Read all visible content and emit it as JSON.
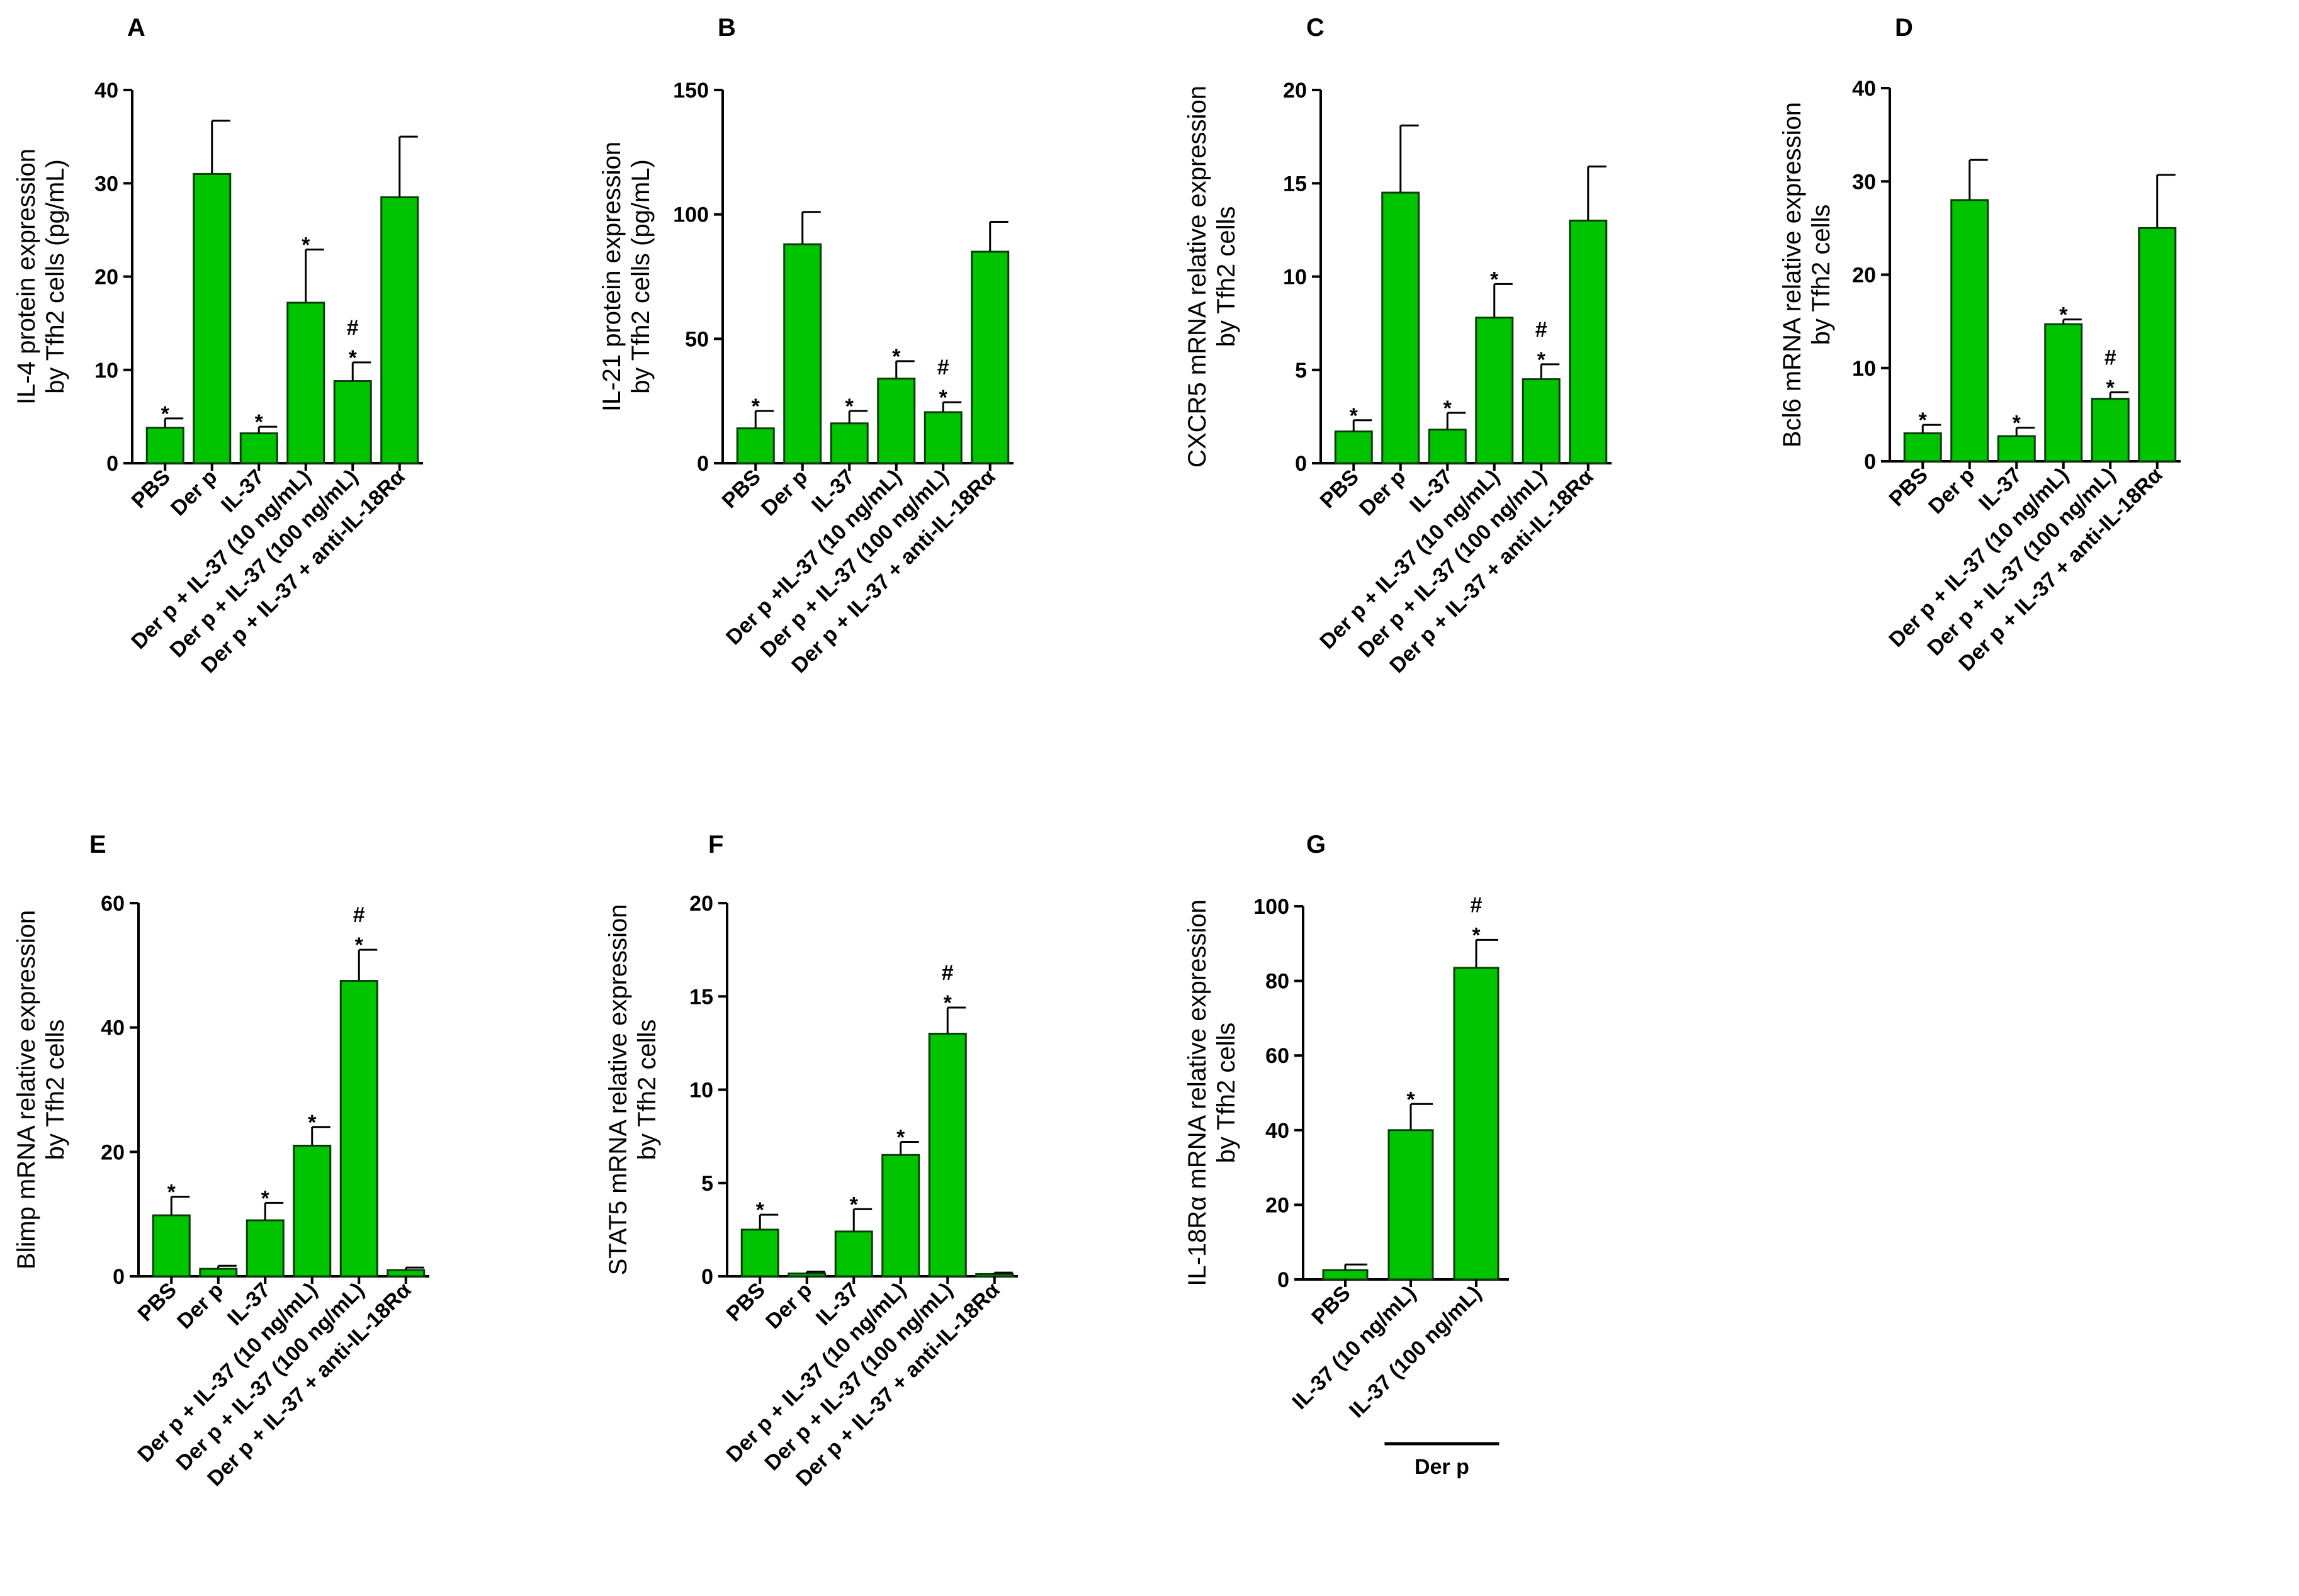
{
  "colors": {
    "bar": "#00c400",
    "bar_stroke": "#0b3d0b",
    "axis": "#000000"
  },
  "chart_data": [
    {
      "type": "bar",
      "panel": "A",
      "ylabel": [
        "IL-4 protein expression",
        "by Tfh2 cells (pg/mL)"
      ],
      "ylim": [
        0,
        40
      ],
      "yticks": [
        0,
        10,
        20,
        30,
        40
      ],
      "categories": [
        "PBS",
        "Der p",
        "IL-37",
        "Der p + IL-37 (10 ng/mL)",
        "Der p + IL-37 (100 ng/mL)",
        "Der p + IL-37 + anti-IL-18Rα"
      ],
      "values": [
        3.8,
        31,
        3.2,
        17.2,
        8.8,
        28.5
      ],
      "errors": [
        1.0,
        5.7,
        0.7,
        5.7,
        2.0,
        6.5
      ],
      "stars": [
        "*",
        "",
        "*",
        "*",
        "*",
        ""
      ],
      "hashes": [
        "",
        "",
        "",
        "",
        "#",
        ""
      ]
    },
    {
      "type": "bar",
      "panel": "B",
      "ylabel": [
        "IL-21 protein expression",
        "by Tfh2 cells (pg/mL)"
      ],
      "ylim": [
        0,
        150
      ],
      "yticks": [
        0,
        50,
        100,
        150
      ],
      "categories": [
        "PBS",
        "Der p",
        "IL-37",
        "Der p +IL-37 (10 ng/mL)",
        "Der p + IL-37 (100 ng/mL)",
        "Der p + IL-37 + anti-IL-18Rα"
      ],
      "values": [
        14,
        88,
        16,
        34,
        20.5,
        85
      ],
      "errors": [
        7,
        13,
        5,
        7,
        4,
        12
      ],
      "stars": [
        "*",
        "",
        "*",
        "*",
        "*",
        ""
      ],
      "hashes": [
        "",
        "",
        "",
        "",
        "#",
        ""
      ]
    },
    {
      "type": "bar",
      "panel": "C",
      "ylabel": [
        "CXCR5 mRNA relative expression",
        "by Tfh2 cells"
      ],
      "ylim": [
        0,
        20
      ],
      "yticks": [
        0,
        5,
        10,
        15,
        20
      ],
      "categories": [
        "PBS",
        "Der p",
        "IL-37",
        "Der p + IL-37 (10 ng/mL)",
        "Der p + IL-37 (100 ng/mL)",
        "Der p + IL-37 + anti-IL-18Rα"
      ],
      "values": [
        1.7,
        14.5,
        1.8,
        7.8,
        4.5,
        13
      ],
      "errors": [
        0.6,
        3.6,
        0.9,
        1.8,
        0.8,
        2.9
      ],
      "stars": [
        "*",
        "",
        "*",
        "*",
        "*",
        ""
      ],
      "hashes": [
        "",
        "",
        "",
        "",
        "#",
        ""
      ]
    },
    {
      "type": "bar",
      "panel": "D",
      "ylabel": [
        "Bcl6 mRNA relative expression",
        "by Tfh2 cells"
      ],
      "ylim": [
        0,
        40
      ],
      "yticks": [
        0,
        10,
        20,
        30,
        40
      ],
      "categories": [
        "PBS",
        "Der p",
        "IL-37",
        "Der p + IL-37 (10 ng/mL)",
        "Der p + IL-37 (100 ng/mL)",
        "Der p + IL-37 + anti-IL-18Rα"
      ],
      "values": [
        3,
        28,
        2.7,
        14.7,
        6.7,
        25
      ],
      "errors": [
        0.9,
        4.3,
        0.9,
        0.5,
        0.7,
        5.7
      ],
      "stars": [
        "*",
        "",
        "*",
        "*",
        "*",
        ""
      ],
      "hashes": [
        "",
        "",
        "",
        "",
        "#",
        ""
      ]
    },
    {
      "type": "bar",
      "panel": "E",
      "ylabel": [
        "Blimp mRNA relative expression",
        "by Tfh2 cells"
      ],
      "ylim": [
        0,
        60
      ],
      "yticks": [
        0,
        20,
        40,
        60
      ],
      "categories": [
        "PBS",
        "Der p",
        "IL-37",
        "Der p + IL-37 (10 ng/mL)",
        "Der p + IL-37 (100 ng/mL)",
        "Der p + IL-37 + anti-IL-18Rα"
      ],
      "values": [
        9.8,
        1.2,
        9,
        21,
        47.5,
        1
      ],
      "errors": [
        3,
        0.5,
        2.8,
        3,
        5,
        0.4
      ],
      "stars": [
        "*",
        "",
        "*",
        "*",
        "*",
        ""
      ],
      "hashes": [
        "",
        "",
        "",
        "",
        "#",
        ""
      ]
    },
    {
      "type": "bar",
      "panel": "F",
      "ylabel": [
        "STAT5 mRNA relative expression",
        "by Tfh2 cells"
      ],
      "ylim": [
        0,
        20
      ],
      "yticks": [
        0,
        5,
        10,
        15,
        20
      ],
      "categories": [
        "PBS",
        "Der p",
        "IL-37",
        "Der p + IL-37 (10 ng/mL)",
        "Der p + IL-37 (100 ng/mL)",
        "Der p + IL-37 + anti-IL-18Rα"
      ],
      "values": [
        2.5,
        0.15,
        2.4,
        6.5,
        13,
        0.12
      ],
      "errors": [
        0.8,
        0.1,
        1.2,
        0.7,
        1.4,
        0.08
      ],
      "stars": [
        "*",
        "",
        "*",
        "*",
        "*",
        ""
      ],
      "hashes": [
        "",
        "",
        "",
        "",
        "#",
        ""
      ]
    },
    {
      "type": "bar",
      "panel": "G",
      "ylabel": [
        "IL-18Rα mRNA relative expression",
        "by Tfh2 cells"
      ],
      "ylim": [
        0,
        100
      ],
      "yticks": [
        0,
        20,
        40,
        60,
        80,
        100
      ],
      "categories": [
        "PBS",
        "IL-37 (10 ng/mL)",
        "IL-37 (100 ng/mL)"
      ],
      "values": [
        2.5,
        40,
        83.5
      ],
      "errors": [
        1.5,
        7,
        7.5
      ],
      "stars": [
        "",
        "*",
        "*"
      ],
      "hashes": [
        "",
        "",
        "#"
      ],
      "group_label": "Der p"
    }
  ]
}
